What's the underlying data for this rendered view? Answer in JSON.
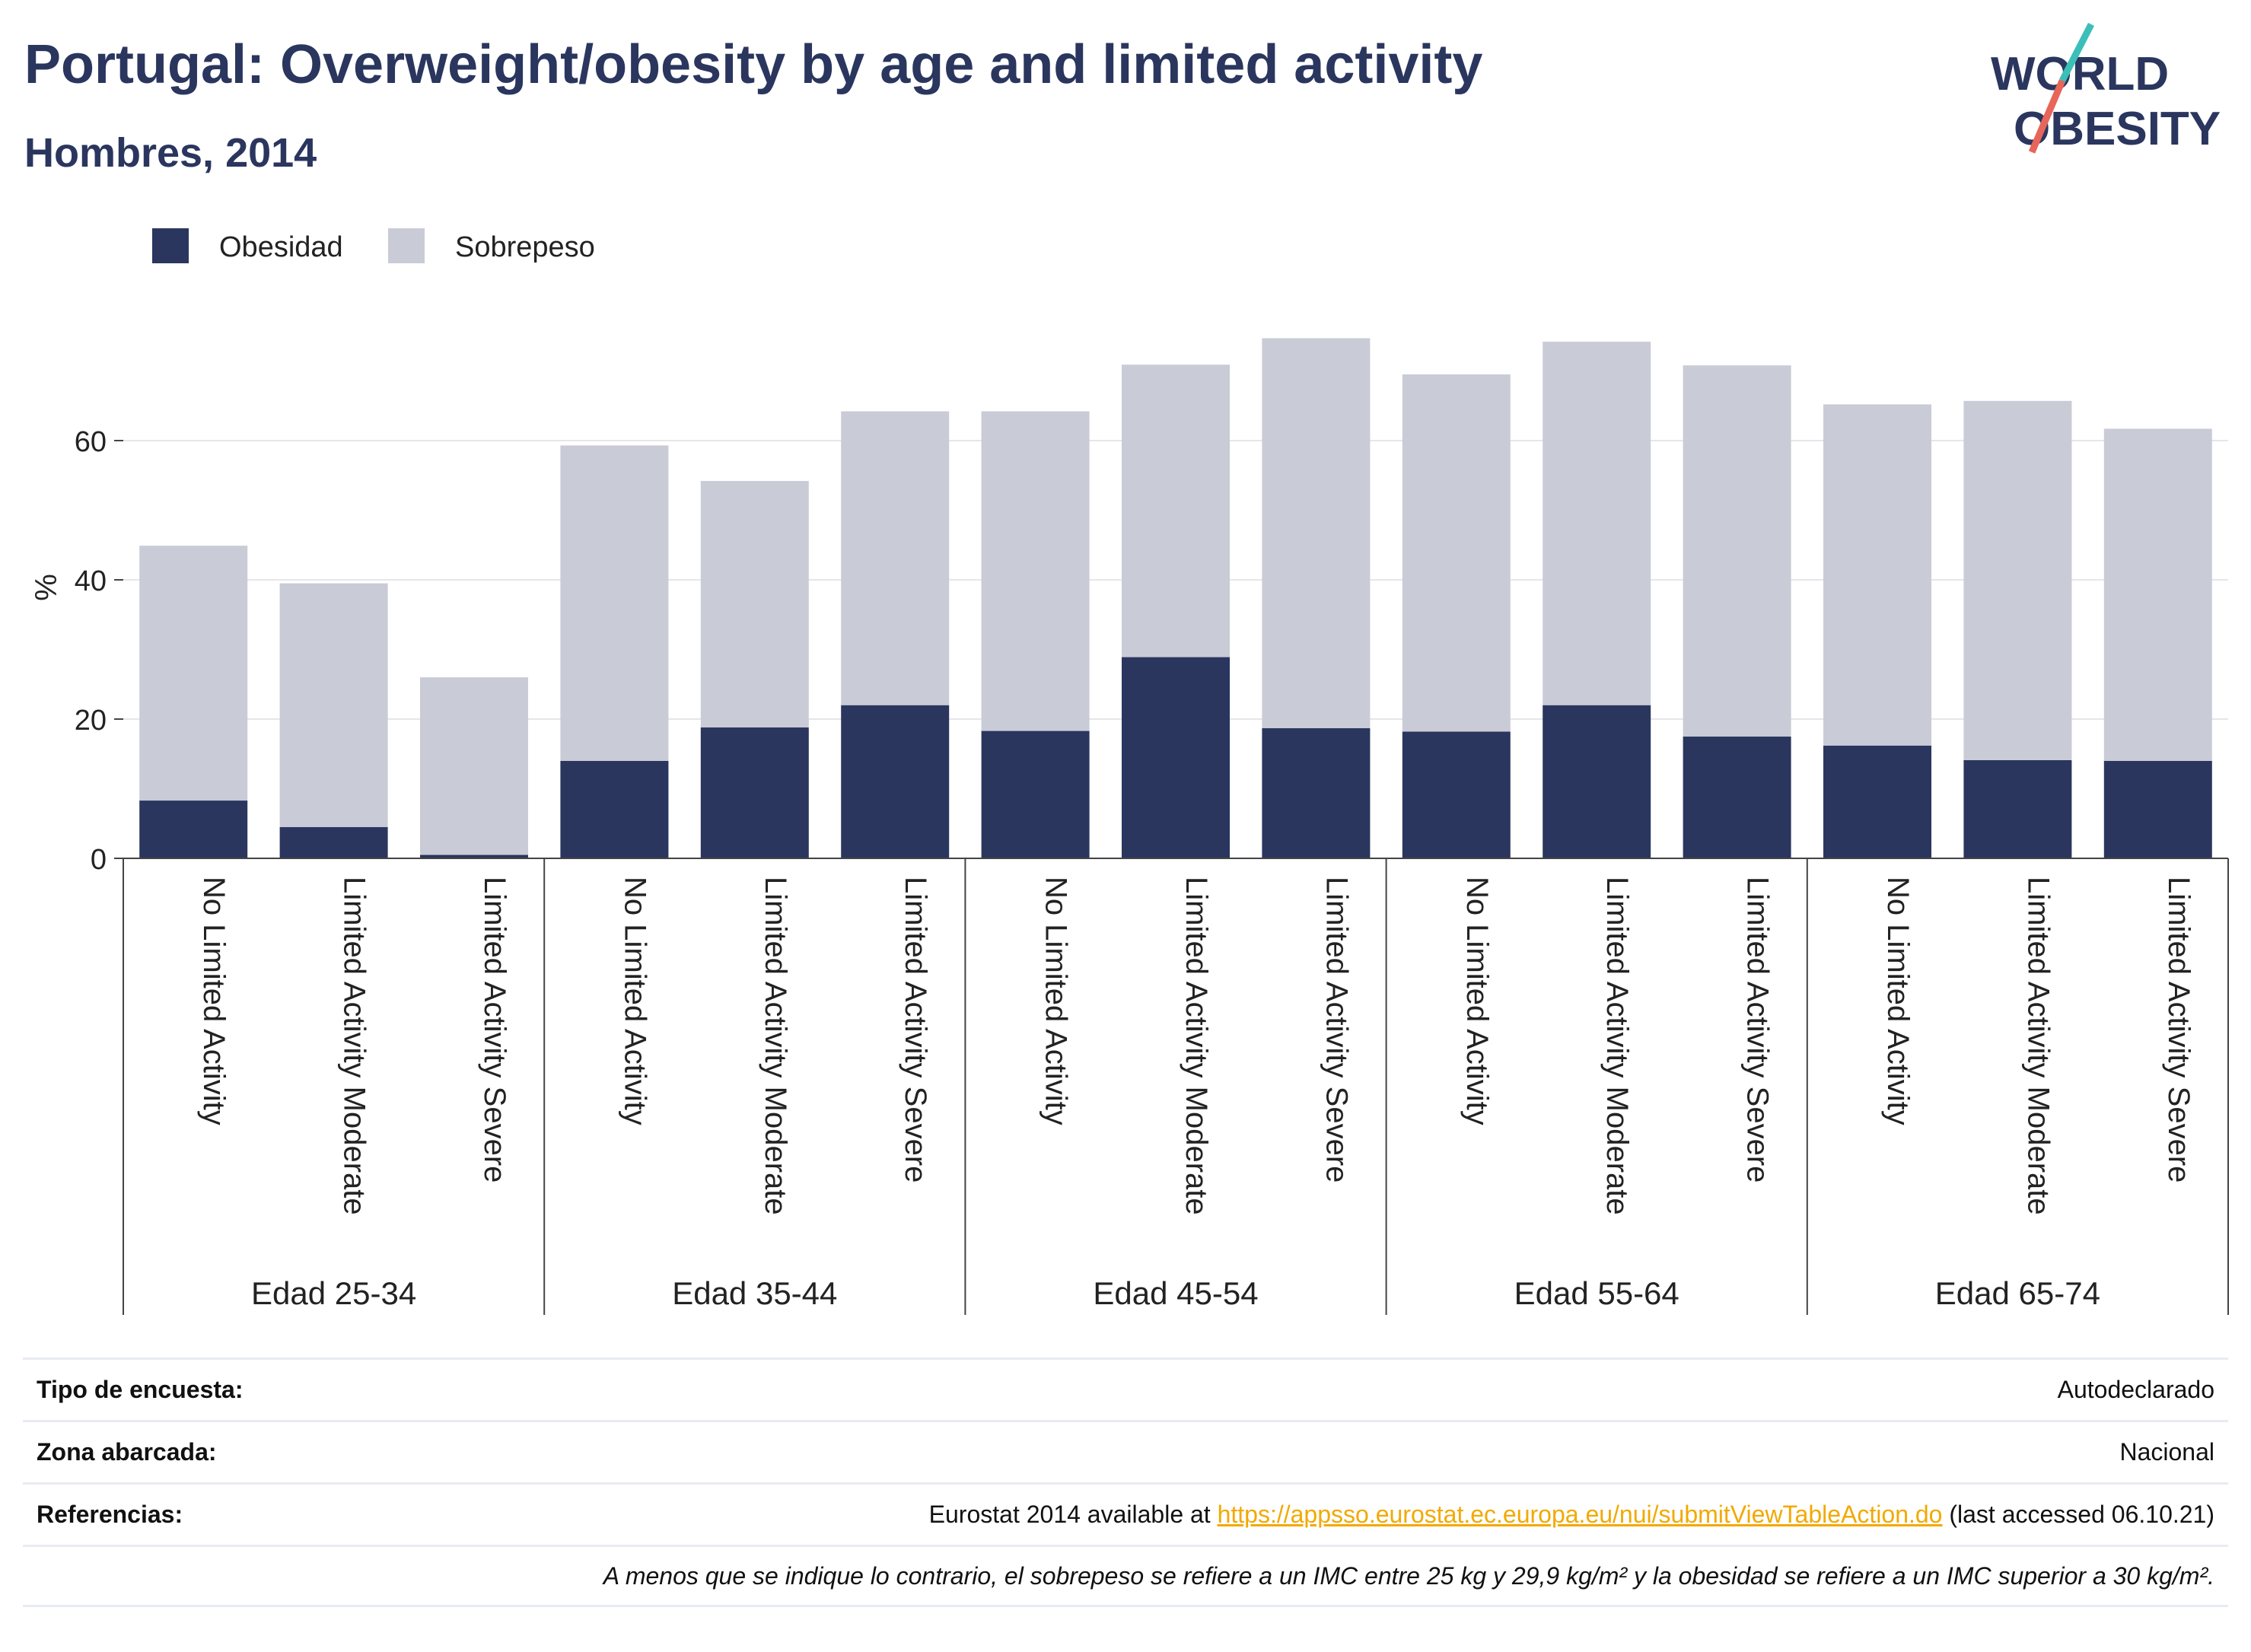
{
  "header": {
    "title": "Portugal: Overweight/obesity by age and limited activity",
    "subtitle": "Hombres, 2014",
    "logo_line1": "WORLD",
    "logo_line2": "OBESITY"
  },
  "colors": {
    "obesidad": "#2a365e",
    "sobrepeso": "#c9cbd6",
    "title": "#2a365e",
    "link": "#f2a900"
  },
  "chart_data": {
    "type": "bar",
    "stacked": true,
    "ylabel": "%",
    "ylim": [
      0,
      78
    ],
    "yticks": [
      0,
      20,
      40,
      60
    ],
    "grid": true,
    "legend_position": "top-left",
    "groups": [
      "Edad 25-34",
      "Edad 35-44",
      "Edad 45-54",
      "Edad 55-64",
      "Edad 65-74"
    ],
    "categories": [
      "No Limited Activity",
      "Limited Activity Moderate",
      "Limited Activity Severe",
      "No Limited Activity",
      "Limited Activity Moderate",
      "Limited Activity Severe",
      "No Limited Activity",
      "Limited Activity Moderate",
      "Limited Activity Severe",
      "No Limited Activity",
      "Limited Activity Moderate",
      "Limited Activity Severe",
      "No Limited Activity",
      "Limited Activity Moderate",
      "Limited Activity Severe"
    ],
    "series": [
      {
        "name": "Obesidad",
        "values": [
          8.3,
          4.5,
          0.5,
          14.0,
          18.8,
          22.0,
          18.3,
          28.9,
          18.7,
          18.2,
          22.0,
          17.5,
          16.2,
          14.1,
          14.0
        ]
      },
      {
        "name": "Sobrepeso",
        "values": [
          36.6,
          35.0,
          25.5,
          45.3,
          35.4,
          42.2,
          45.9,
          42.0,
          56.0,
          51.3,
          52.2,
          53.3,
          49.0,
          51.6,
          47.7
        ]
      }
    ]
  },
  "footer": {
    "survey_label": "Tipo de encuesta:",
    "survey_value": "Autodeclarado",
    "area_label": "Zona abarcada:",
    "area_value": "Nacional",
    "ref_label": "Referencias:",
    "ref_prefix": "Eurostat 2014 available at ",
    "ref_link": "https://appsso.eurostat.ec.europa.eu/nui/submitViewTableAction.do",
    "ref_suffix": " (last accessed 06.10.21)",
    "note": "A menos que se indique lo contrario, el sobrepeso se refiere a un IMC entre 25 kg y 29,9 kg/m² y la obesidad se refiere a un IMC superior a 30 kg/m²."
  }
}
